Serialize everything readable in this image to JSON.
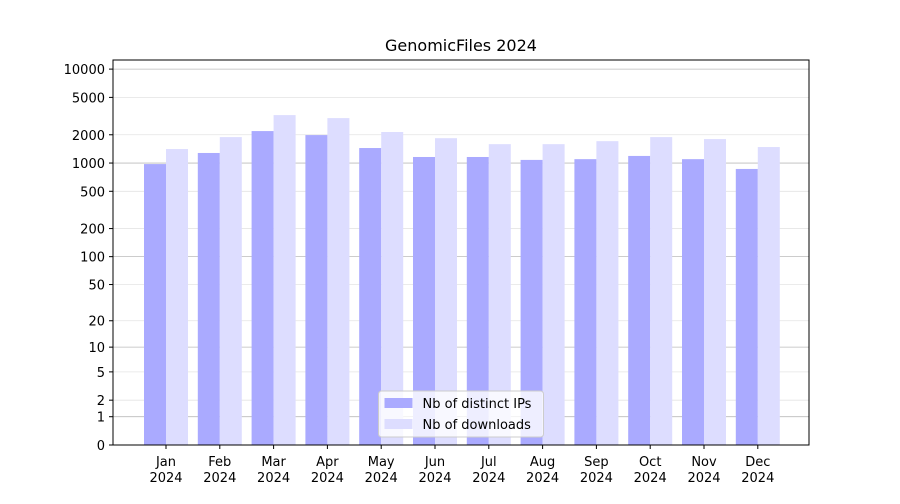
{
  "chart_data": {
    "type": "bar",
    "title": "GenomicFiles 2024",
    "categories": [
      [
        "Jan",
        "2024"
      ],
      [
        "Feb",
        "2024"
      ],
      [
        "Mar",
        "2024"
      ],
      [
        "Apr",
        "2024"
      ],
      [
        "May",
        "2024"
      ],
      [
        "Jun",
        "2024"
      ],
      [
        "Jul",
        "2024"
      ],
      [
        "Aug",
        "2024"
      ],
      [
        "Sep",
        "2024"
      ],
      [
        "Oct",
        "2024"
      ],
      [
        "Nov",
        "2024"
      ],
      [
        "Dec",
        "2024"
      ]
    ],
    "series": [
      {
        "name": "Nb of distinct IPs",
        "color": "#aaaaff",
        "values": [
          975,
          1280,
          2190,
          1985,
          1445,
          1160,
          1160,
          1080,
          1100,
          1190,
          1100,
          865
        ]
      },
      {
        "name": "Nb of downloads",
        "color": "#ddddff",
        "values": [
          1410,
          1890,
          3240,
          3010,
          2140,
          1840,
          1590,
          1590,
          1710,
          1890,
          1800,
          1480
        ]
      }
    ],
    "yscale": "log1p",
    "ylim": [
      0,
      12500
    ],
    "yticks": [
      0,
      1,
      2,
      5,
      10,
      20,
      50,
      100,
      200,
      500,
      1000,
      2000,
      5000,
      10000
    ],
    "grid": true,
    "legend": "lower center"
  }
}
